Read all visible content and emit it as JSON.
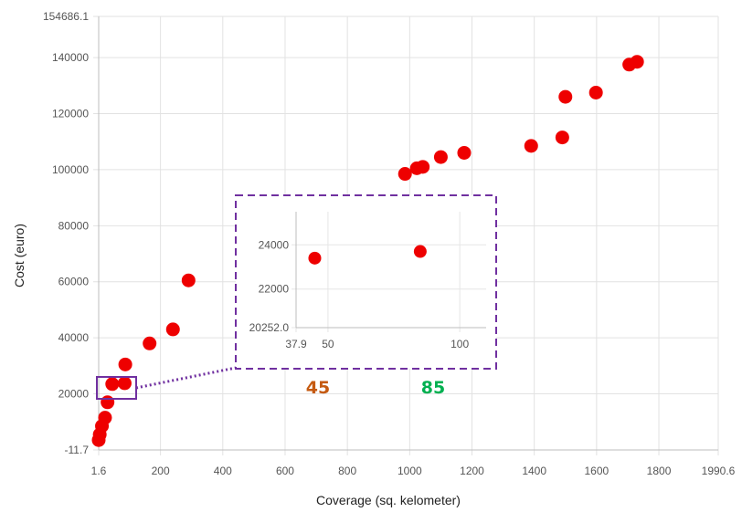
{
  "chart_data": {
    "type": "scatter",
    "xlabel": "Coverage (sq. kelometer)",
    "ylabel": "Cost (euro)",
    "xlim": [
      1.6,
      1990.6
    ],
    "ylim": [
      -11.7,
      154686.1
    ],
    "x_ticks": [
      "1.6",
      "200",
      "400",
      "600",
      "800",
      "1000",
      "1200",
      "1400",
      "1600",
      "1800",
      "1990.6"
    ],
    "y_ticks": [
      "-11.7",
      "20000",
      "40000",
      "60000",
      "80000",
      "100000",
      "120000",
      "140000",
      "154686.1"
    ],
    "grid": true,
    "point_color": "#ee0000",
    "points": [
      {
        "x": 1.6,
        "y": 3500
      },
      {
        "x": 5,
        "y": 5500
      },
      {
        "x": 12,
        "y": 8500
      },
      {
        "x": 22,
        "y": 11500
      },
      {
        "x": 30,
        "y": 17000
      },
      {
        "x": 45,
        "y": 23500
      },
      {
        "x": 85,
        "y": 23800
      },
      {
        "x": 87,
        "y": 30500
      },
      {
        "x": 165,
        "y": 38000
      },
      {
        "x": 240,
        "y": 43000
      },
      {
        "x": 290,
        "y": 60500
      },
      {
        "x": 985,
        "y": 98500
      },
      {
        "x": 1023,
        "y": 100500
      },
      {
        "x": 1042,
        "y": 101000
      },
      {
        "x": 1100,
        "y": 104500
      },
      {
        "x": 1175,
        "y": 106000
      },
      {
        "x": 1390,
        "y": 108500
      },
      {
        "x": 1490,
        "y": 111500
      },
      {
        "x": 1500,
        "y": 126000
      },
      {
        "x": 1598,
        "y": 127500
      },
      {
        "x": 1705,
        "y": 137500
      },
      {
        "x": 1730,
        "y": 138500
      }
    ],
    "inset": {
      "xlim": [
        37.9,
        110
      ],
      "ylim": [
        20252.0,
        25500
      ],
      "x_ticks": [
        "37.9",
        "50",
        "100"
      ],
      "y_ticks": [
        "20252.0",
        "22000",
        "24000"
      ],
      "points": [
        {
          "x": 45,
          "y": 23400
        },
        {
          "x": 85,
          "y": 23700
        }
      ]
    },
    "annotations": [
      {
        "text": "45",
        "color": "#c55a11"
      },
      {
        "text": "85",
        "color": "#00b050"
      }
    ],
    "highlight_color": "#7030a0"
  }
}
